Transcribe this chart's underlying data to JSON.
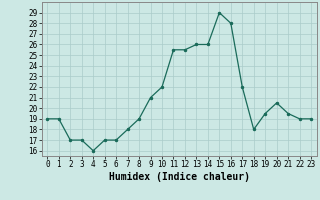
{
  "x": [
    0,
    1,
    2,
    3,
    4,
    5,
    6,
    7,
    8,
    9,
    10,
    11,
    12,
    13,
    14,
    15,
    16,
    17,
    18,
    19,
    20,
    21,
    22,
    23
  ],
  "y": [
    19,
    19,
    17,
    17,
    16,
    17,
    17,
    18,
    19,
    21,
    22,
    25.5,
    25.5,
    26,
    26,
    29,
    28,
    22,
    18,
    19.5,
    20.5,
    19.5,
    19,
    19
  ],
  "line_color": "#1a6b5a",
  "marker_color": "#1a6b5a",
  "bg_color": "#cce8e4",
  "grid_color": "#aaccca",
  "xlabel": "Humidex (Indice chaleur)",
  "ylim": [
    15.5,
    30
  ],
  "xlim": [
    -0.5,
    23.5
  ],
  "yticks": [
    16,
    17,
    18,
    19,
    20,
    21,
    22,
    23,
    24,
    25,
    26,
    27,
    28,
    29
  ],
  "xticks": [
    0,
    1,
    2,
    3,
    4,
    5,
    6,
    7,
    8,
    9,
    10,
    11,
    12,
    13,
    14,
    15,
    16,
    17,
    18,
    19,
    20,
    21,
    22,
    23
  ],
  "tick_fontsize": 5.5,
  "xlabel_fontsize": 7.0
}
